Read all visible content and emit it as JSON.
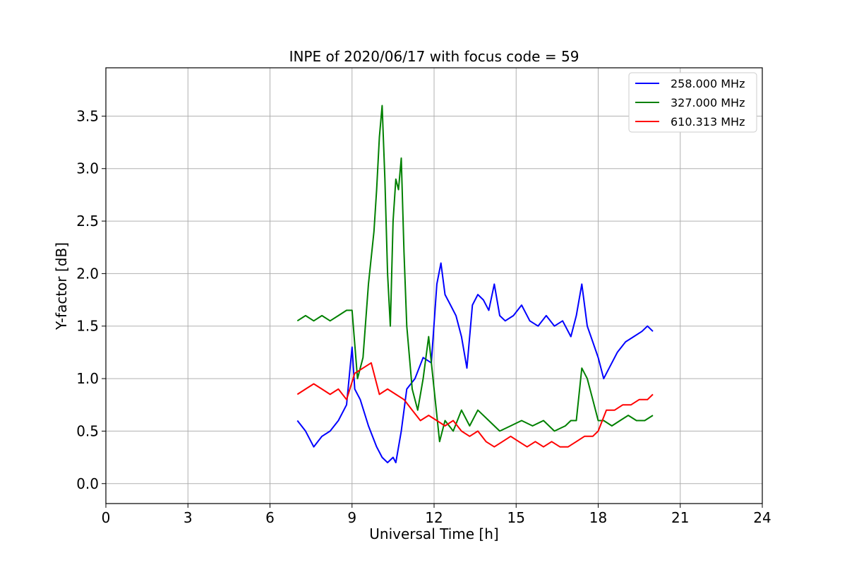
{
  "chart_data": {
    "type": "line",
    "title": "INPE of 2020/06/17 with focus code = 59",
    "xlabel": "Universal Time [h]",
    "ylabel": "Y-factor [dB]",
    "xlim": [
      0,
      24
    ],
    "ylim": [
      -0.19,
      3.96
    ],
    "x_ticks": [
      0,
      3,
      6,
      9,
      12,
      15,
      18,
      21,
      24
    ],
    "x_tick_labels": [
      "0",
      "3",
      "6",
      "9",
      "12",
      "15",
      "18",
      "21",
      "24"
    ],
    "y_ticks": [
      0.0,
      0.5,
      1.0,
      1.5,
      2.0,
      2.5,
      3.0,
      3.5
    ],
    "y_tick_labels": [
      "0.0",
      "0.5",
      "1.0",
      "1.5",
      "2.0",
      "2.5",
      "3.0",
      "3.5"
    ],
    "grid": true,
    "legend_position": "top-right",
    "series": [
      {
        "name": "258.000 MHz",
        "color": "#0000ff",
        "x": [
          7.0,
          7.3,
          7.6,
          7.9,
          8.2,
          8.5,
          8.8,
          9.0,
          9.1,
          9.3,
          9.6,
          9.9,
          10.1,
          10.3,
          10.5,
          10.6,
          10.8,
          11.0,
          11.3,
          11.6,
          11.9,
          12.1,
          12.25,
          12.4,
          12.6,
          12.8,
          13.0,
          13.2,
          13.4,
          13.6,
          13.8,
          14.0,
          14.2,
          14.4,
          14.6,
          14.9,
          15.2,
          15.5,
          15.8,
          16.1,
          16.4,
          16.7,
          17.0,
          17.2,
          17.4,
          17.6,
          17.8,
          18.0,
          18.2,
          18.4,
          18.7,
          19.0,
          19.3,
          19.6,
          19.8,
          20.0
        ],
        "y": [
          0.6,
          0.5,
          0.35,
          0.45,
          0.5,
          0.6,
          0.75,
          1.3,
          0.9,
          0.8,
          0.55,
          0.35,
          0.25,
          0.2,
          0.25,
          0.2,
          0.5,
          0.9,
          1.0,
          1.2,
          1.15,
          1.9,
          2.1,
          1.8,
          1.7,
          1.6,
          1.4,
          1.1,
          1.7,
          1.8,
          1.75,
          1.65,
          1.9,
          1.6,
          1.55,
          1.6,
          1.7,
          1.55,
          1.5,
          1.6,
          1.5,
          1.55,
          1.4,
          1.6,
          1.9,
          1.5,
          1.35,
          1.2,
          1.0,
          1.1,
          1.25,
          1.35,
          1.4,
          1.45,
          1.5,
          1.45
        ]
      },
      {
        "name": "327.000 MHz",
        "color": "#008000",
        "x": [
          7.0,
          7.3,
          7.6,
          7.9,
          8.2,
          8.5,
          8.8,
          9.0,
          9.2,
          9.4,
          9.6,
          9.8,
          9.9,
          10.0,
          10.1,
          10.2,
          10.3,
          10.4,
          10.5,
          10.6,
          10.7,
          10.8,
          10.9,
          11.0,
          11.2,
          11.4,
          11.6,
          11.8,
          12.0,
          12.2,
          12.4,
          12.7,
          13.0,
          13.3,
          13.6,
          14.0,
          14.4,
          14.8,
          15.2,
          15.6,
          16.0,
          16.4,
          16.8,
          17.0,
          17.2,
          17.4,
          17.6,
          17.8,
          18.0,
          18.2,
          18.5,
          18.8,
          19.1,
          19.4,
          19.7,
          20.0
        ],
        "y": [
          1.55,
          1.6,
          1.55,
          1.6,
          1.55,
          1.6,
          1.65,
          1.65,
          1.0,
          1.2,
          1.9,
          2.4,
          2.8,
          3.3,
          3.6,
          2.9,
          2.0,
          1.5,
          2.5,
          2.9,
          2.8,
          3.1,
          2.2,
          1.5,
          0.9,
          0.7,
          1.0,
          1.4,
          0.9,
          0.4,
          0.6,
          0.5,
          0.7,
          0.55,
          0.7,
          0.6,
          0.5,
          0.55,
          0.6,
          0.55,
          0.6,
          0.5,
          0.55,
          0.6,
          0.6,
          1.1,
          1.0,
          0.8,
          0.6,
          0.6,
          0.55,
          0.6,
          0.65,
          0.6,
          0.6,
          0.65
        ]
      },
      {
        "name": "610.313 MHz",
        "color": "#ff0000",
        "x": [
          7.0,
          7.3,
          7.6,
          7.9,
          8.2,
          8.5,
          8.8,
          9.1,
          9.4,
          9.7,
          10.0,
          10.3,
          10.6,
          10.9,
          11.2,
          11.5,
          11.8,
          12.1,
          12.4,
          12.7,
          13.0,
          13.3,
          13.6,
          13.9,
          14.2,
          14.5,
          14.8,
          15.1,
          15.4,
          15.7,
          16.0,
          16.3,
          16.6,
          16.9,
          17.2,
          17.5,
          17.8,
          18.0,
          18.3,
          18.6,
          18.9,
          19.2,
          19.5,
          19.8,
          20.0
        ],
        "y": [
          0.85,
          0.9,
          0.95,
          0.9,
          0.85,
          0.9,
          0.8,
          1.05,
          1.1,
          1.15,
          0.85,
          0.9,
          0.85,
          0.8,
          0.7,
          0.6,
          0.65,
          0.6,
          0.55,
          0.6,
          0.5,
          0.45,
          0.5,
          0.4,
          0.35,
          0.4,
          0.45,
          0.4,
          0.35,
          0.4,
          0.35,
          0.4,
          0.35,
          0.35,
          0.4,
          0.45,
          0.45,
          0.5,
          0.7,
          0.7,
          0.75,
          0.75,
          0.8,
          0.8,
          0.85
        ]
      }
    ]
  }
}
